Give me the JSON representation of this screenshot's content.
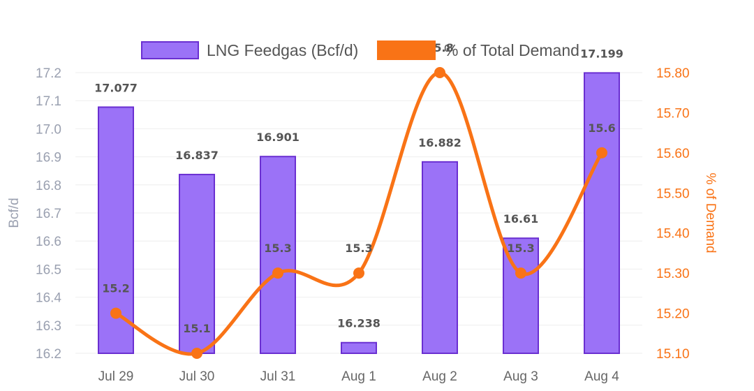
{
  "chart_data": {
    "type": "bar",
    "categories": [
      "Jul 29",
      "Jul 30",
      "Jul 31",
      "Aug 1",
      "Aug 2",
      "Aug 3",
      "Aug 4"
    ],
    "series": [
      {
        "name": "LNG Feedgas (Bcf/d)",
        "type": "bar",
        "axis": "left",
        "values": [
          17.077,
          16.837,
          16.901,
          16.238,
          16.882,
          16.61,
          17.199
        ],
        "labels": [
          "17.077",
          "16.837",
          "16.901",
          "16.238",
          "16.882",
          "16.61",
          "17.199"
        ]
      },
      {
        "name": "% of Total Demand",
        "type": "line",
        "axis": "right",
        "values": [
          15.2,
          15.1,
          15.3,
          15.3,
          15.8,
          15.3,
          15.6
        ],
        "labels": [
          "15.2",
          "15.1",
          "15.3",
          "15.3",
          "15.8",
          "15.3",
          "15.6"
        ]
      }
    ],
    "ylabel": "Bcf/d",
    "y2label": "% of Demand",
    "ylim": [
      16.2,
      17.2
    ],
    "y2lim": [
      15.1,
      15.8
    ],
    "yticks": [
      "16.2",
      "16.3",
      "16.4",
      "16.5",
      "16.6",
      "16.7",
      "16.8",
      "16.9",
      "17.0",
      "17.1",
      "17.2"
    ],
    "y2ticks": [
      "15.10",
      "15.20",
      "15.30",
      "15.40",
      "15.50",
      "15.60",
      "15.70",
      "15.80"
    ],
    "grid": true,
    "legend_position": "top-center",
    "colors": {
      "bar_fill": "#9b72f7",
      "bar_stroke": "#6a2fd1",
      "line": "#f97316",
      "left_axis_text": "#9aa0b0",
      "right_axis_text": "#f97316",
      "grid": "#eeeeee"
    }
  }
}
